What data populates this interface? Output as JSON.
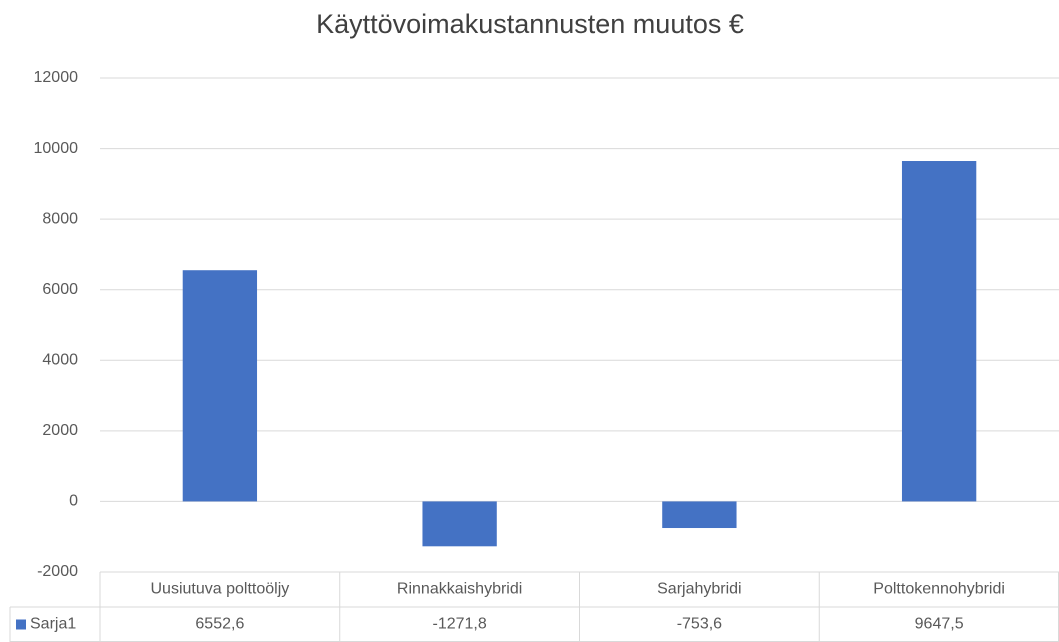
{
  "chart_data": {
    "type": "bar",
    "title": "Käyttövoimakustannusten muutos €",
    "categories": [
      "Uusiutuva polttoöljy",
      "Rinnakkaishybridi",
      "Sarjahybridi",
      "Polttokennohybridi"
    ],
    "series": [
      {
        "name": "Sarja1",
        "color": "#4472c4",
        "values": [
          6552.6,
          -1271.8,
          -753.6,
          9647.5
        ],
        "value_labels": [
          "6552,6",
          "-1271,8",
          "-753,6",
          "9647,5"
        ]
      }
    ],
    "ylim": [
      -2000,
      12000
    ],
    "yticks": [
      -2000,
      0,
      2000,
      4000,
      6000,
      8000,
      10000,
      12000
    ],
    "grid": true,
    "data_table": true
  }
}
